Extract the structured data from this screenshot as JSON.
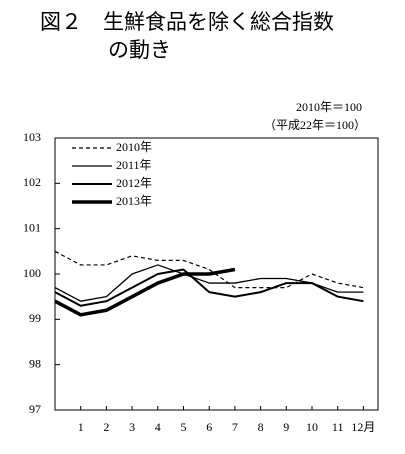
{
  "chart_data": {
    "type": "line",
    "title": [
      "図２　生鮮食品を除く総合指数",
      "の動き"
    ],
    "note": [
      "2010年＝100",
      "（平成22年＝100）"
    ],
    "categories": [
      null,
      "1",
      "2",
      "3",
      "4",
      "5",
      "6",
      "7",
      "8",
      "9",
      "10",
      "11",
      "12月"
    ],
    "series": [
      {
        "name": "2010年",
        "color": "#000000",
        "style": "dashed",
        "values": [
          100.5,
          100.2,
          100.2,
          100.4,
          100.3,
          100.3,
          100.1,
          99.7,
          99.7,
          99.7,
          100.0,
          99.8,
          99.7
        ]
      },
      {
        "name": "2011年",
        "color": "#000000",
        "style": "thin",
        "values": [
          99.7,
          99.4,
          99.5,
          100.0,
          100.2,
          100.0,
          99.8,
          99.8,
          99.9,
          99.9,
          99.8,
          99.6,
          99.6
        ]
      },
      {
        "name": "2012年",
        "color": "#000000",
        "style": "medium",
        "values": [
          99.6,
          99.3,
          99.4,
          99.7,
          100.0,
          100.1,
          99.6,
          99.5,
          99.6,
          99.8,
          99.8,
          99.5,
          99.4
        ]
      },
      {
        "name": "2013年",
        "color": "#000000",
        "style": "thick",
        "values": [
          99.4,
          99.1,
          99.2,
          99.5,
          99.8,
          100.0,
          100.0,
          100.1,
          null,
          null,
          null,
          null,
          null
        ]
      }
    ],
    "ylim": [
      97,
      103
    ],
    "yticks": [
      97,
      98,
      99,
      100,
      101,
      102,
      103
    ],
    "legend": "upper left"
  }
}
